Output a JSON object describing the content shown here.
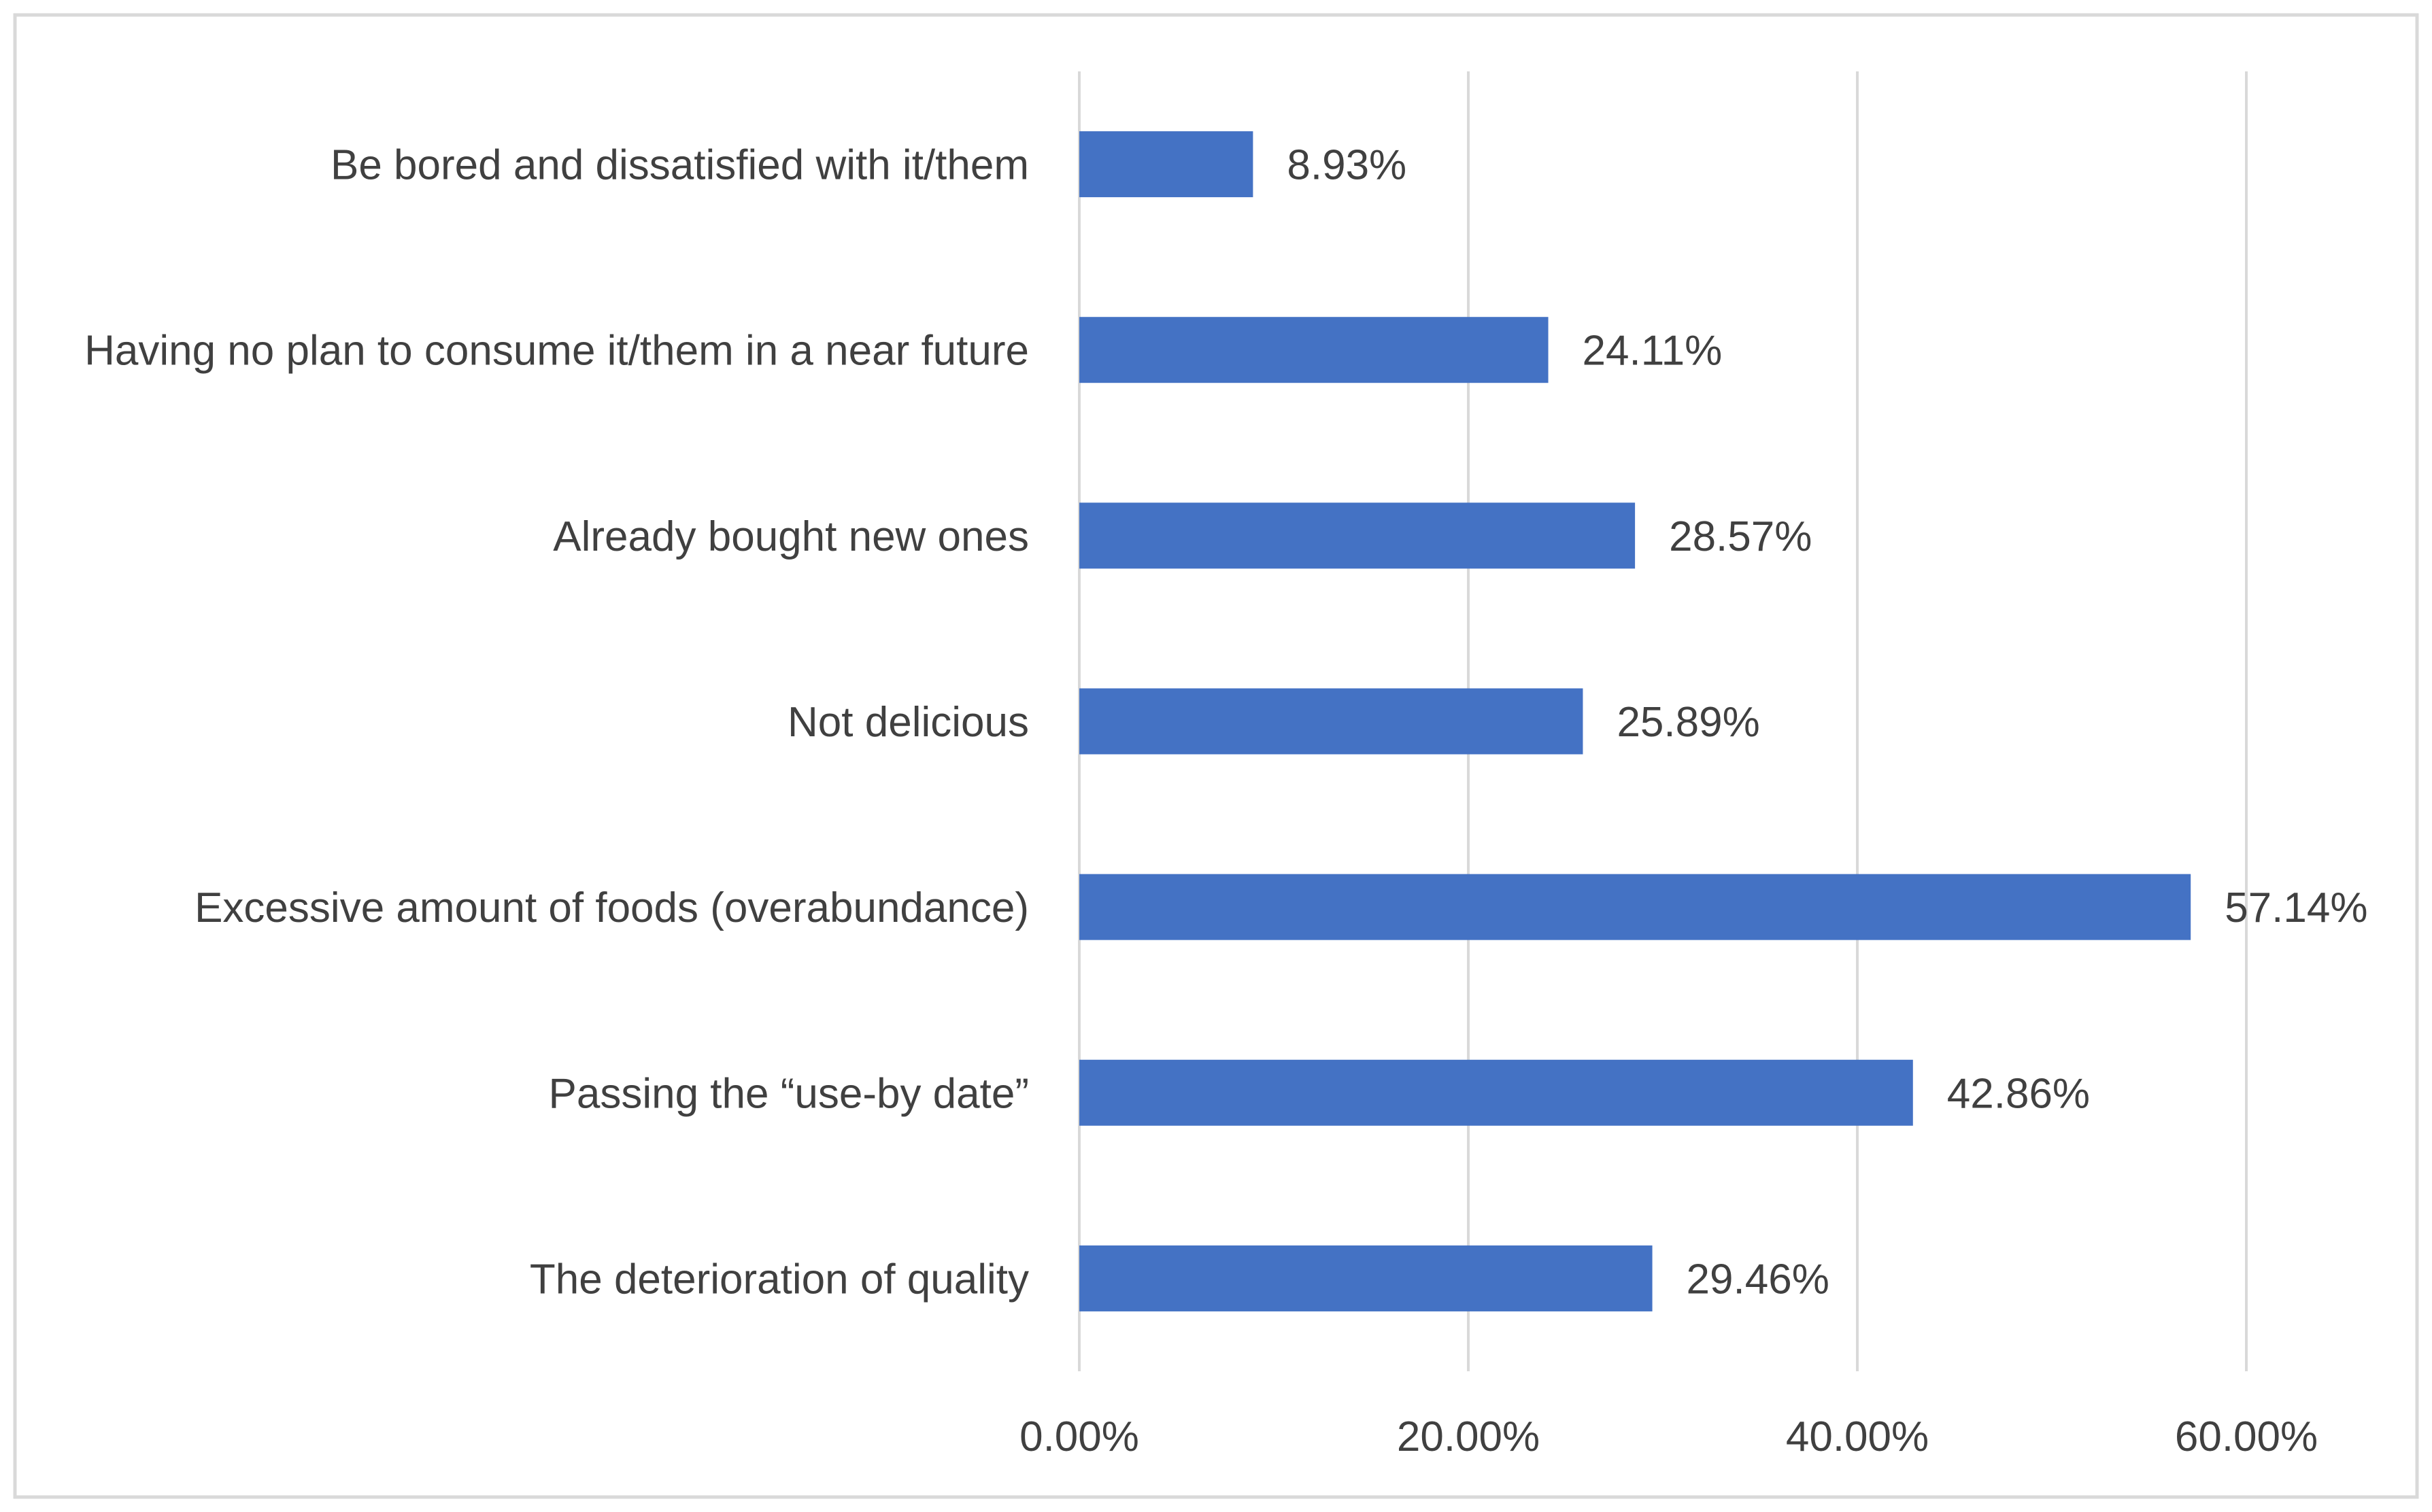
{
  "chart_data": {
    "type": "bar",
    "orientation": "horizontal",
    "title": "",
    "xlabel": "",
    "ylabel": "",
    "categories": [
      "Be bored and dissatisfied with it/them",
      "Having no plan to consume it/them in a near future",
      "Already bought new ones",
      "Not delicious",
      "Excessive amount of foods (overabundance)",
      "Passing the “use-by date”",
      "The deterioration of quality"
    ],
    "values": [
      8.93,
      24.11,
      28.57,
      25.89,
      57.14,
      42.86,
      29.46
    ],
    "value_labels": [
      "8.93%",
      "24.11%",
      "28.57%",
      "25.89%",
      "57.14%",
      "42.86%",
      "29.46%"
    ],
    "xlim": [
      0,
      60
    ],
    "ticks": [
      0,
      20,
      40,
      60
    ],
    "tick_labels": [
      "0.00%",
      "20.00%",
      "40.00%",
      "60.00%"
    ],
    "grid": true,
    "colors": {
      "bar": "#4472C4",
      "grid": "#D9D9D9",
      "text": "#404040",
      "border": "#D9D9D9"
    }
  }
}
